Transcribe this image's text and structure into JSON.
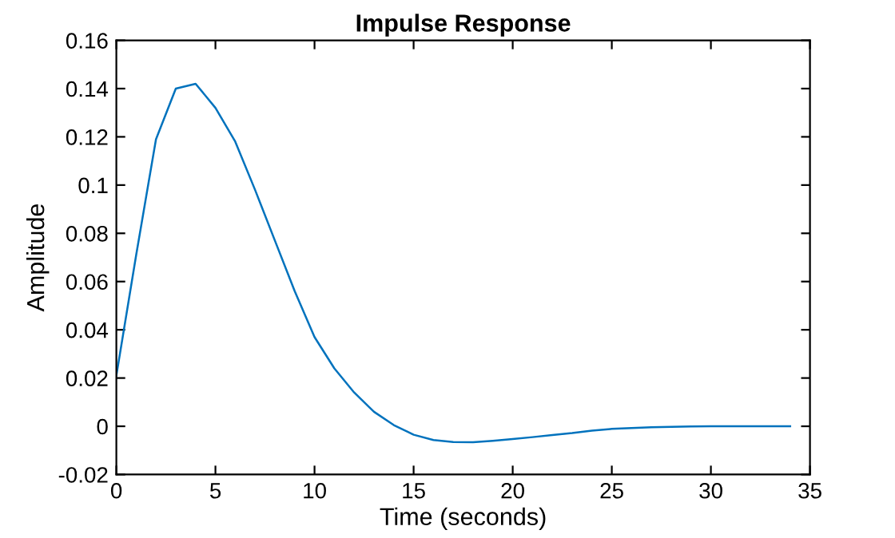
{
  "chart_data": {
    "type": "line",
    "title": "Impulse Response",
    "xlabel": "Time (seconds)",
    "ylabel": "Amplitude",
    "x": [
      0,
      1,
      2,
      3,
      4,
      5,
      6,
      7,
      8,
      9,
      10,
      11,
      12,
      13,
      14,
      15,
      16,
      17,
      18,
      19,
      20,
      21,
      22,
      23,
      24,
      25,
      26,
      27,
      28,
      29,
      30,
      31,
      32,
      33,
      34
    ],
    "series": [
      {
        "color": "#0072bd",
        "values": [
          0.021,
          0.071,
          0.119,
          0.14,
          0.142,
          0.132,
          0.118,
          0.098,
          0.077,
          0.056,
          0.037,
          0.024,
          0.014,
          0.006,
          0.0005,
          -0.0035,
          -0.0057,
          -0.0065,
          -0.0066,
          -0.006,
          -0.0053,
          -0.0045,
          -0.0036,
          -0.0028,
          -0.0018,
          -0.0011,
          -0.0007,
          -0.0004,
          -0.0002,
          -0.0001,
          0,
          0,
          0,
          0,
          0
        ]
      }
    ],
    "xlim": [
      0,
      35
    ],
    "ylim": [
      -0.02,
      0.16
    ],
    "xticks": [
      0,
      5,
      10,
      15,
      20,
      25,
      30,
      35
    ],
    "yticks": [
      -0.02,
      0,
      0.02,
      0.04,
      0.06,
      0.08,
      0.1,
      0.12,
      0.14,
      0.16
    ],
    "grid": false,
    "legend": false,
    "marker": "none",
    "line_style": "solid"
  }
}
